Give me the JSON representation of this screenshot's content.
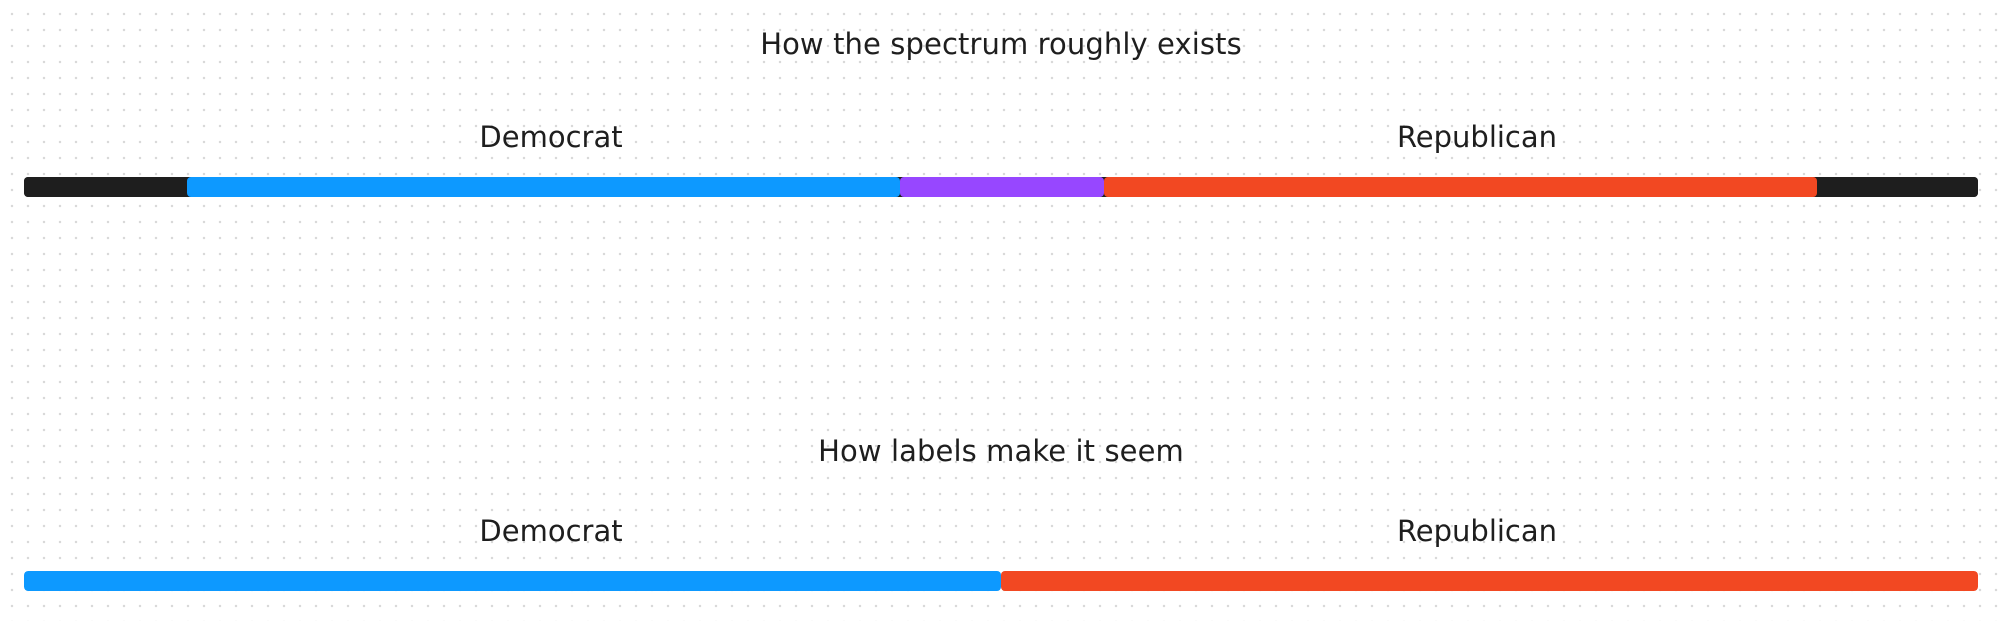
{
  "diagrams": [
    {
      "title": "How the spectrum roughly exists",
      "labels": [
        "Democrat",
        "Republican"
      ],
      "segments": [
        {
          "color": "#1e1e1e",
          "fraction": 0.0835
        },
        {
          "color": "#0d99ff",
          "fraction": 0.365
        },
        {
          "color": "#9747ff",
          "fraction": 0.1045
        },
        {
          "color": "#f24822",
          "fraction": 0.365
        },
        {
          "color": "#1e1e1e",
          "fraction": 0.082
        }
      ]
    },
    {
      "title": "How labels make it seem",
      "labels": [
        "Democrat",
        "Republican"
      ],
      "segments": [
        {
          "color": "#0d99ff",
          "fraction": 0.5
        },
        {
          "color": "#f24822",
          "fraction": 0.5
        }
      ]
    }
  ]
}
